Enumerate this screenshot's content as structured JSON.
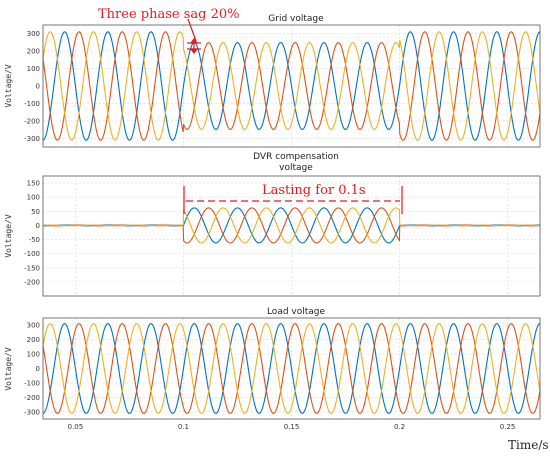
{
  "chart_data": [
    {
      "type": "line",
      "title": "Grid voltage",
      "ylabel": "Voltage/V",
      "xlim": [
        0.035,
        0.265
      ],
      "ylim": [
        -350,
        350
      ],
      "yticks": [
        -300,
        -200,
        -100,
        0,
        100,
        200,
        300
      ],
      "xticks": [
        0.05,
        0.1,
        0.15,
        0.2,
        0.25
      ],
      "grid": true,
      "frequency_hz": 50,
      "normal_amplitude": 311,
      "sag_amplitude": 249,
      "sag_interval": [
        0.1,
        0.2
      ],
      "series": [
        {
          "phase_deg": 0,
          "color": "#0072BD"
        },
        {
          "phase_deg": -120,
          "color": "#D95319"
        },
        {
          "phase_deg": 120,
          "color": "#EDB120"
        }
      ],
      "annotation": "Three phase sag 20%"
    },
    {
      "type": "line",
      "title": "DVR compensation voltage",
      "ylabel": "Voltage/V",
      "xlim": [
        0.035,
        0.265
      ],
      "ylim": [
        -250,
        175
      ],
      "yticks": [
        -200,
        -150,
        -100,
        -50,
        0,
        50,
        100,
        150
      ],
      "xticks": [
        0.05,
        0.1,
        0.15,
        0.2,
        0.25
      ],
      "grid": true,
      "frequency_hz": 50,
      "compensation_amplitude": 62,
      "active_interval": [
        0.1,
        0.2
      ],
      "series": [
        {
          "phase_deg": 0,
          "color": "#0072BD"
        },
        {
          "phase_deg": -120,
          "color": "#D95319"
        },
        {
          "phase_deg": 120,
          "color": "#EDB120"
        }
      ],
      "annotation": "Lasting for 0.1s"
    },
    {
      "type": "line",
      "title": "Load voltage",
      "ylabel": "Voltage/V",
      "xlim": [
        0.035,
        0.265
      ],
      "ylim": [
        -350,
        350
      ],
      "yticks": [
        -300,
        -200,
        -100,
        0,
        100,
        200,
        300
      ],
      "xticks": [
        0.05,
        0.1,
        0.15,
        0.2,
        0.25
      ],
      "xlabel": "Time/s",
      "grid": true,
      "frequency_hz": 50,
      "amplitude": 311,
      "series": [
        {
          "phase_deg": 0,
          "color": "#0072BD"
        },
        {
          "phase_deg": -120,
          "color": "#D95319"
        },
        {
          "phase_deg": 120,
          "color": "#EDB120"
        }
      ]
    }
  ]
}
